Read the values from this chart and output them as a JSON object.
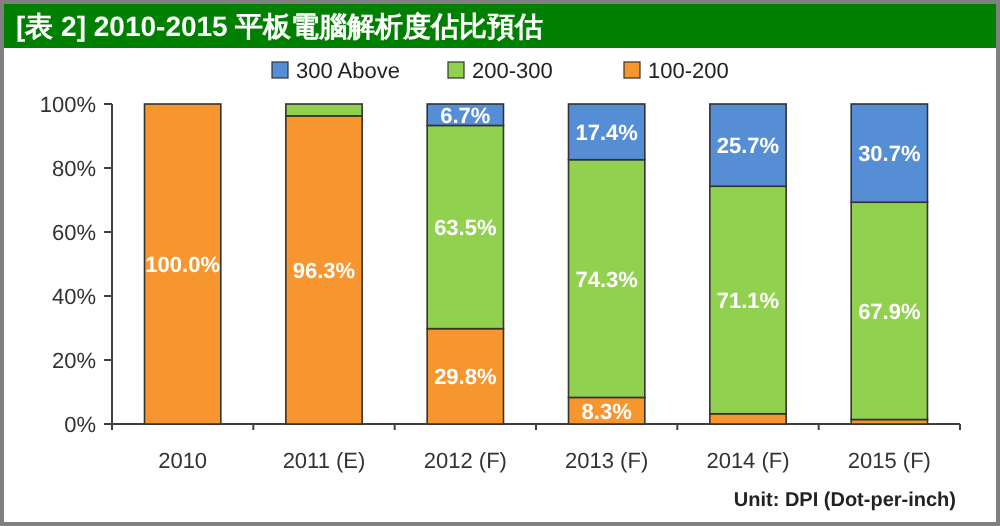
{
  "chart_data": {
    "type": "bar",
    "stacked": true,
    "title": "[表 2] 2010-2015 平板電腦解析度佔比預估",
    "categories": [
      "2010",
      "2011 (E)",
      "2012 (F)",
      "2013 (F)",
      "2014 (F)",
      "2015 (F)"
    ],
    "series": [
      {
        "name": "100-200",
        "color": "#f7962e",
        "values": [
          100.0,
          96.3,
          29.8,
          8.3,
          3.2,
          1.4
        ],
        "value_labels": [
          "100.0%",
          "96.3%",
          "29.8%",
          "8.3%",
          null,
          null
        ]
      },
      {
        "name": "200-300",
        "color": "#92d050",
        "values": [
          0,
          3.7,
          63.5,
          74.3,
          71.1,
          67.9
        ],
        "value_labels": [
          null,
          null,
          "63.5%",
          "74.3%",
          "71.1%",
          "67.9%"
        ]
      },
      {
        "name": "300 Above",
        "color": "#558ed5",
        "values": [
          0,
          0,
          6.7,
          17.4,
          25.7,
          30.7
        ],
        "value_labels": [
          null,
          null,
          "6.7%",
          "17.4%",
          "25.7%",
          "30.7%"
        ]
      }
    ],
    "ylim": [
      0,
      100
    ],
    "yticks": [
      {
        "value": 0,
        "label": "0%"
      },
      {
        "value": 20,
        "label": "20%"
      },
      {
        "value": 40,
        "label": "40%"
      },
      {
        "value": 60,
        "label": "60%"
      },
      {
        "value": 80,
        "label": "80%"
      },
      {
        "value": 100,
        "label": "100%"
      }
    ],
    "legend": "top",
    "annotations": [
      "Unit: DPI (Dot-per-inch)"
    ]
  }
}
